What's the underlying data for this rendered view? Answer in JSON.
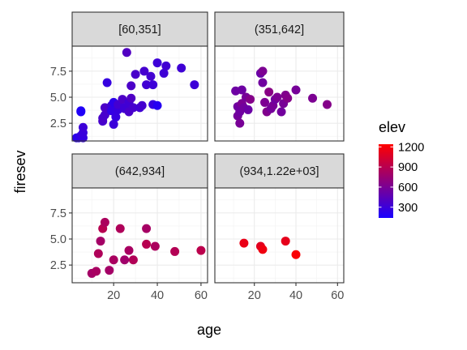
{
  "chart_data": {
    "type": "scatter",
    "xlabel": "age",
    "ylabel": "firesev",
    "xlim": [
      1,
      63
    ],
    "ylim": [
      0.8,
      9.9
    ],
    "x_ticks": [
      20,
      40,
      60
    ],
    "y_ticks": [
      2.5,
      5.0,
      7.5
    ],
    "x_tick_labels": [
      "20",
      "40",
      "60"
    ],
    "y_tick_labels": [
      "2.5",
      "5.0",
      "7.5"
    ],
    "color_scale": {
      "title": "elev",
      "low_color": "#1a00ff",
      "high_color": "#ff0000",
      "min": 60,
      "max": 1225,
      "ticks": [
        300,
        600,
        900,
        1200
      ],
      "tick_labels": [
        "300",
        "600",
        "900",
        "1200"
      ]
    },
    "panels": [
      {
        "label": "[60,351]",
        "points": [
          {
            "x": 3,
            "y": 1.1,
            "elev": 140
          },
          {
            "x": 4,
            "y": 1.1,
            "elev": 160
          },
          {
            "x": 5,
            "y": 1.3,
            "elev": 180
          },
          {
            "x": 6,
            "y": 1.1,
            "elev": 200
          },
          {
            "x": 6,
            "y": 1.6,
            "elev": 220
          },
          {
            "x": 6,
            "y": 2.1,
            "elev": 240
          },
          {
            "x": 5,
            "y": 3.7,
            "elev": 100
          },
          {
            "x": 5,
            "y": 3.6,
            "elev": 90
          },
          {
            "x": 15,
            "y": 2.7,
            "elev": 290
          },
          {
            "x": 15,
            "y": 3.0,
            "elev": 300
          },
          {
            "x": 16,
            "y": 3.3,
            "elev": 290
          },
          {
            "x": 16,
            "y": 4.0,
            "elev": 310
          },
          {
            "x": 17,
            "y": 6.4,
            "elev": 200
          },
          {
            "x": 19,
            "y": 4.2,
            "elev": 250
          },
          {
            "x": 19,
            "y": 3.7,
            "elev": 180
          },
          {
            "x": 20,
            "y": 4.5,
            "elev": 150
          },
          {
            "x": 20,
            "y": 2.4,
            "elev": 230
          },
          {
            "x": 21,
            "y": 3.1,
            "elev": 200
          },
          {
            "x": 22,
            "y": 3.8,
            "elev": 210
          },
          {
            "x": 22,
            "y": 4.3,
            "elev": 270
          },
          {
            "x": 24,
            "y": 4.8,
            "elev": 320
          },
          {
            "x": 25,
            "y": 3.9,
            "elev": 280
          },
          {
            "x": 25,
            "y": 4.0,
            "elev": 250
          },
          {
            "x": 26,
            "y": 9.3,
            "elev": 340
          },
          {
            "x": 27,
            "y": 4.5,
            "elev": 260
          },
          {
            "x": 27,
            "y": 3.6,
            "elev": 300
          },
          {
            "x": 28,
            "y": 4.9,
            "elev": 330
          },
          {
            "x": 28,
            "y": 6.1,
            "elev": 310
          },
          {
            "x": 29,
            "y": 4.0,
            "elev": 290
          },
          {
            "x": 30,
            "y": 7.2,
            "elev": 300
          },
          {
            "x": 32,
            "y": 4.0,
            "elev": 260
          },
          {
            "x": 33,
            "y": 4.2,
            "elev": 280
          },
          {
            "x": 34,
            "y": 7.5,
            "elev": 280
          },
          {
            "x": 35,
            "y": 6.2,
            "elev": 260
          },
          {
            "x": 37,
            "y": 7.0,
            "elev": 270
          },
          {
            "x": 38,
            "y": 4.3,
            "elev": 200
          },
          {
            "x": 38,
            "y": 6.2,
            "elev": 240
          },
          {
            "x": 40,
            "y": 8.3,
            "elev": 240
          },
          {
            "x": 40,
            "y": 4.2,
            "elev": 120
          },
          {
            "x": 43,
            "y": 7.3,
            "elev": 250
          },
          {
            "x": 44,
            "y": 8.0,
            "elev": 260
          },
          {
            "x": 51,
            "y": 7.8,
            "elev": 250
          },
          {
            "x": 57,
            "y": 6.2,
            "elev": 240
          }
        ]
      },
      {
        "label": "(351,642]",
        "points": [
          {
            "x": 11,
            "y": 5.6,
            "elev": 480
          },
          {
            "x": 12,
            "y": 4.1,
            "elev": 500
          },
          {
            "x": 12,
            "y": 3.2,
            "elev": 520
          },
          {
            "x": 13,
            "y": 2.5,
            "elev": 540
          },
          {
            "x": 13,
            "y": 3.6,
            "elev": 490
          },
          {
            "x": 14,
            "y": 4.4,
            "elev": 560
          },
          {
            "x": 14,
            "y": 5.7,
            "elev": 480
          },
          {
            "x": 15,
            "y": 4.0,
            "elev": 510
          },
          {
            "x": 16,
            "y": 5.0,
            "elev": 530
          },
          {
            "x": 17,
            "y": 3.8,
            "elev": 470
          },
          {
            "x": 18,
            "y": 4.8,
            "elev": 600
          },
          {
            "x": 23,
            "y": 7.3,
            "elev": 460
          },
          {
            "x": 24,
            "y": 7.5,
            "elev": 560
          },
          {
            "x": 24,
            "y": 6.4,
            "elev": 500
          },
          {
            "x": 25,
            "y": 4.5,
            "elev": 560
          },
          {
            "x": 26,
            "y": 3.6,
            "elev": 580
          },
          {
            "x": 27,
            "y": 5.5,
            "elev": 620
          },
          {
            "x": 28,
            "y": 3.9,
            "elev": 520
          },
          {
            "x": 29,
            "y": 4.2,
            "elev": 540
          },
          {
            "x": 30,
            "y": 4.8,
            "elev": 500
          },
          {
            "x": 31,
            "y": 5.0,
            "elev": 560
          },
          {
            "x": 33,
            "y": 3.6,
            "elev": 510
          },
          {
            "x": 34,
            "y": 4.4,
            "elev": 540
          },
          {
            "x": 35,
            "y": 5.2,
            "elev": 580
          },
          {
            "x": 36,
            "y": 4.9,
            "elev": 600
          },
          {
            "x": 40,
            "y": 5.7,
            "elev": 530
          },
          {
            "x": 48,
            "y": 4.9,
            "elev": 560
          },
          {
            "x": 55,
            "y": 4.3,
            "elev": 600
          }
        ]
      },
      {
        "label": "(642,934]",
        "points": [
          {
            "x": 10,
            "y": 1.7,
            "elev": 760
          },
          {
            "x": 12,
            "y": 1.9,
            "elev": 780
          },
          {
            "x": 13,
            "y": 3.6,
            "elev": 820
          },
          {
            "x": 14,
            "y": 4.8,
            "elev": 760
          },
          {
            "x": 15,
            "y": 6.0,
            "elev": 860
          },
          {
            "x": 16,
            "y": 6.6,
            "elev": 800
          },
          {
            "x": 18,
            "y": 2.0,
            "elev": 760
          },
          {
            "x": 20,
            "y": 3.0,
            "elev": 790
          },
          {
            "x": 23,
            "y": 6.0,
            "elev": 820
          },
          {
            "x": 25,
            "y": 3.0,
            "elev": 740
          },
          {
            "x": 27,
            "y": 3.9,
            "elev": 780
          },
          {
            "x": 29,
            "y": 3.0,
            "elev": 830
          },
          {
            "x": 35,
            "y": 6.0,
            "elev": 770
          },
          {
            "x": 35,
            "y": 4.5,
            "elev": 860
          },
          {
            "x": 39,
            "y": 4.3,
            "elev": 800
          },
          {
            "x": 48,
            "y": 3.8,
            "elev": 840
          },
          {
            "x": 60,
            "y": 3.9,
            "elev": 880
          }
        ]
      },
      {
        "label": "(934,1.22e+03]",
        "points": [
          {
            "x": 15,
            "y": 4.6,
            "elev": 1120
          },
          {
            "x": 23,
            "y": 4.3,
            "elev": 1080
          },
          {
            "x": 24,
            "y": 4.0,
            "elev": 1150
          },
          {
            "x": 35,
            "y": 4.8,
            "elev": 1100
          },
          {
            "x": 40,
            "y": 3.5,
            "elev": 1200
          }
        ]
      }
    ]
  }
}
